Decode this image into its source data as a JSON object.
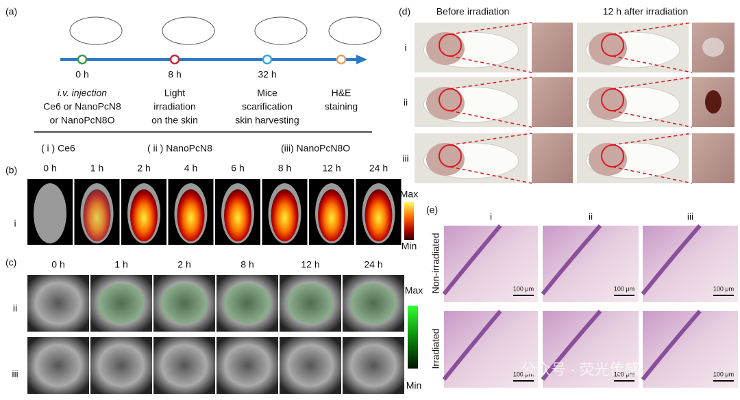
{
  "panel_a": {
    "label": "(a)",
    "steps": [
      {
        "time": "0 h",
        "lines": [
          "i.v. injection",
          "Ce6 or NanoPcN8",
          "or NanoPcN8O"
        ]
      },
      {
        "time": "8 h",
        "lines": [
          "Light",
          "irradiation",
          "on the skin"
        ]
      },
      {
        "time": "32 h",
        "lines": [
          "Mice",
          "scarification",
          "skin harvesting"
        ]
      },
      {
        "time": null,
        "lines": [
          "H&E",
          "staining"
        ]
      }
    ],
    "groups": [
      "( i ) Ce6",
      "( ii ) NanoPcN8",
      "(iii) NanoPcN8O"
    ]
  },
  "panel_b": {
    "label": "(b)",
    "times": [
      "0 h",
      "1 h",
      "2 h",
      "4 h",
      "6 h",
      "8 h",
      "12 h",
      "24 h"
    ],
    "row": "i",
    "max": "Max",
    "min": "Min"
  },
  "panel_c": {
    "label": "(c)",
    "times": [
      "0 h",
      "1 h",
      "2 h",
      "8 h",
      "12 h",
      "24 h"
    ],
    "rows": [
      "ii",
      "iii"
    ],
    "max": "Max",
    "min": "Min"
  },
  "panel_d": {
    "label": "(d)",
    "headers": [
      "Before irradiation",
      "12 h after irradiation"
    ],
    "rows": [
      "i",
      "ii",
      "iii"
    ]
  },
  "panel_e": {
    "label": "(e)",
    "columns": [
      "i",
      "ii",
      "iii"
    ],
    "rows": [
      "Non-irradiated",
      "Irradiated"
    ],
    "scale_bar": "100 μm"
  },
  "watermark": "公众号 · 荧光传感"
}
